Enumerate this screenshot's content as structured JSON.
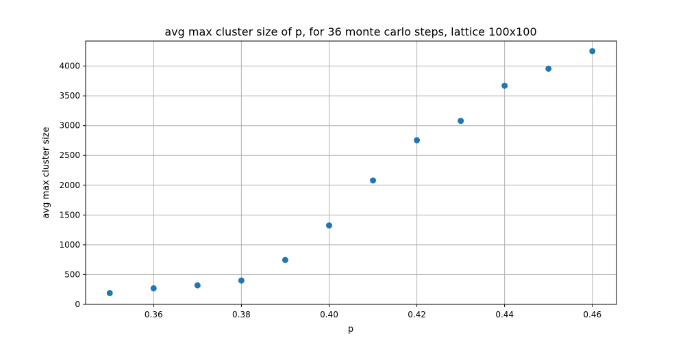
{
  "chart_data": {
    "type": "scatter",
    "title": "avg max cluster size of p, for 36 monte carlo steps, lattice 100x100",
    "xlabel": "p",
    "ylabel": "avg max cluster size",
    "x": [
      0.35,
      0.36,
      0.37,
      0.38,
      0.39,
      0.4,
      0.41,
      0.42,
      0.43,
      0.44,
      0.45,
      0.46
    ],
    "y": [
      190,
      270,
      320,
      400,
      745,
      1325,
      2080,
      2755,
      3080,
      3670,
      3955,
      4250
    ],
    "xlim": [
      0.3445,
      0.4655
    ],
    "ylim": [
      0,
      4420
    ],
    "xticks": [
      0.36,
      0.38,
      0.4,
      0.42,
      0.44,
      0.46
    ],
    "xtick_labels": [
      "0.36",
      "0.38",
      "0.40",
      "0.42",
      "0.44",
      "0.46"
    ],
    "yticks": [
      0,
      500,
      1000,
      1500,
      2000,
      2500,
      3000,
      3500,
      4000
    ],
    "ytick_labels": [
      "0",
      "500",
      "1000",
      "1500",
      "2000",
      "2500",
      "3000",
      "3500",
      "4000"
    ],
    "grid": true,
    "marker_color": "#1f77b4"
  }
}
